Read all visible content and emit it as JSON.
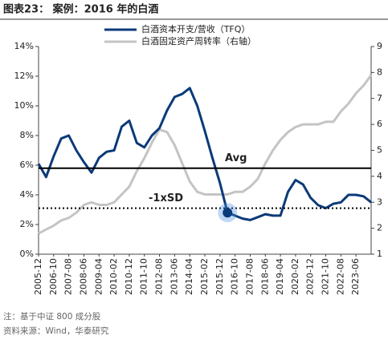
{
  "chart_data": {
    "type": "line",
    "title": "图表23：  案例：2016 年的白酒",
    "categories": [
      "2005-12",
      null,
      "2006-10",
      null,
      "2007-08",
      null,
      "2008-06",
      null,
      "2009-04",
      null,
      "2010-02",
      null,
      "2010-12",
      null,
      "2011-10",
      null,
      "2012-08",
      null,
      "2013-06",
      null,
      "2014-04",
      null,
      "2015-02",
      null,
      "2015-12",
      null,
      "2016-10",
      null,
      "2017-08",
      null,
      "2018-06",
      null,
      "2019-04",
      null,
      "2020-02",
      null,
      "2020-12",
      null,
      "2021-10",
      null,
      "2022-08",
      null,
      "2023-06",
      null,
      null
    ],
    "series": [
      {
        "name": "白酒资本开支/营收（TFQ）",
        "color": "#0b3a78",
        "values": [
          6.1,
          5.2,
          6.6,
          7.8,
          8.0,
          7.0,
          6.2,
          5.5,
          6.5,
          6.9,
          7.0,
          8.6,
          9.0,
          7.5,
          7.2,
          8.0,
          8.5,
          9.7,
          10.6,
          10.8,
          11.2,
          10.0,
          8.3,
          6.5,
          4.8,
          2.8,
          2.6,
          2.4,
          2.3,
          2.5,
          2.7,
          2.6,
          2.6,
          4.2,
          5.0,
          4.7,
          3.8,
          3.3,
          3.1,
          3.4,
          3.5,
          4.0,
          4.0,
          3.9,
          3.5
        ]
      },
      {
        "name": "白酒固定资产周转率（右轴）",
        "color": "#c4c4c4",
        "axis": "y2",
        "values": [
          1.8,
          1.95,
          2.1,
          2.3,
          2.4,
          2.6,
          2.9,
          3.0,
          2.9,
          2.9,
          3.0,
          3.3,
          3.6,
          4.2,
          4.7,
          5.3,
          5.8,
          5.7,
          5.2,
          4.5,
          3.8,
          3.4,
          3.3,
          3.3,
          3.3,
          3.3,
          3.4,
          3.4,
          3.6,
          3.9,
          4.5,
          5.0,
          5.4,
          5.7,
          5.9,
          6.0,
          6.0,
          6.0,
          6.1,
          6.1,
          6.5,
          6.8,
          7.2,
          7.5,
          7.9
        ]
      }
    ],
    "ylim": [
      0,
      14
    ],
    "yticks": [
      {
        "value": 0,
        "label": "0%"
      },
      {
        "value": 2,
        "label": "2%"
      },
      {
        "value": 4,
        "label": "4%"
      },
      {
        "value": 6,
        "label": "6%"
      },
      {
        "value": 8,
        "label": "8%"
      },
      {
        "value": 10,
        "label": "10%"
      },
      {
        "value": 12,
        "label": "12%"
      },
      {
        "value": 14,
        "label": "14%"
      }
    ],
    "y2lim": [
      1,
      9
    ],
    "y2ticks": [
      1,
      2,
      3,
      4,
      5,
      6,
      7,
      8,
      9
    ],
    "reference_lines": [
      {
        "label": "Avg",
        "value": 5.8,
        "style": "solid"
      },
      {
        "label": "-1xSD",
        "value": 3.1,
        "style": "dotted"
      }
    ],
    "highlight_index": 25,
    "notes": [
      "注：基于中证 800 成分股",
      "资料来源：Wind，华泰研究"
    ]
  }
}
